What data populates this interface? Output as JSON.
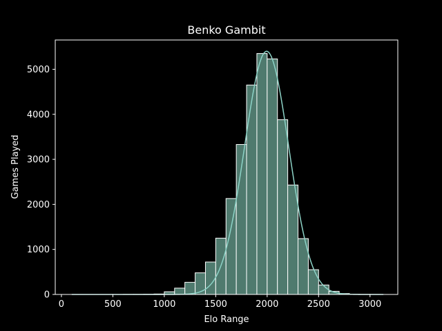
{
  "chart_data": {
    "type": "bar",
    "title": "Benko Gambit",
    "xlabel": "Elo Range",
    "ylabel": "Games Played",
    "xlim": [
      -60,
      3270
    ],
    "ylim": [
      0,
      5650
    ],
    "xticks": [
      0,
      500,
      1000,
      1500,
      2000,
      2500,
      3000
    ],
    "yticks": [
      0,
      1000,
      2000,
      3000,
      4000,
      5000
    ],
    "bins": [
      {
        "x0": 100,
        "x1": 200,
        "value": 0
      },
      {
        "x0": 200,
        "x1": 300,
        "value": 0
      },
      {
        "x0": 300,
        "x1": 400,
        "value": 0
      },
      {
        "x0": 400,
        "x1": 500,
        "value": 0
      },
      {
        "x0": 500,
        "x1": 600,
        "value": 0
      },
      {
        "x0": 600,
        "x1": 700,
        "value": 2
      },
      {
        "x0": 700,
        "x1": 800,
        "value": 3
      },
      {
        "x0": 800,
        "x1": 900,
        "value": 5
      },
      {
        "x0": 900,
        "x1": 1000,
        "value": 10
      },
      {
        "x0": 1000,
        "x1": 1100,
        "value": 60
      },
      {
        "x0": 1100,
        "x1": 1200,
        "value": 140
      },
      {
        "x0": 1200,
        "x1": 1300,
        "value": 270
      },
      {
        "x0": 1300,
        "x1": 1400,
        "value": 480
      },
      {
        "x0": 1400,
        "x1": 1500,
        "value": 720
      },
      {
        "x0": 1500,
        "x1": 1600,
        "value": 1250
      },
      {
        "x0": 1600,
        "x1": 1700,
        "value": 2130
      },
      {
        "x0": 1700,
        "x1": 1800,
        "value": 3330
      },
      {
        "x0": 1800,
        "x1": 1900,
        "value": 4650
      },
      {
        "x0": 1900,
        "x1": 2000,
        "value": 5350
      },
      {
        "x0": 2000,
        "x1": 2100,
        "value": 5230
      },
      {
        "x0": 2100,
        "x1": 2200,
        "value": 3880
      },
      {
        "x0": 2200,
        "x1": 2300,
        "value": 2430
      },
      {
        "x0": 2300,
        "x1": 2400,
        "value": 1240
      },
      {
        "x0": 2400,
        "x1": 2500,
        "value": 550
      },
      {
        "x0": 2500,
        "x1": 2600,
        "value": 210
      },
      {
        "x0": 2600,
        "x1": 2700,
        "value": 70
      },
      {
        "x0": 2700,
        "x1": 2800,
        "value": 20
      },
      {
        "x0": 2800,
        "x1": 2900,
        "value": 5
      },
      {
        "x0": 2900,
        "x1": 3000,
        "value": 2
      },
      {
        "x0": 3000,
        "x1": 3100,
        "value": 1
      }
    ],
    "kde": {
      "mean": 1995,
      "sd": 215,
      "peak": 5400,
      "x_range": [
        100,
        3130
      ]
    },
    "grid": false,
    "legend": false,
    "colors": {
      "background": "#000000",
      "bar_fill": "#4f7a6e",
      "bar_edge": "#ffffff",
      "kde_line": "#8dd3c7",
      "axes": "#ffffff",
      "text": "#ffffff"
    }
  }
}
